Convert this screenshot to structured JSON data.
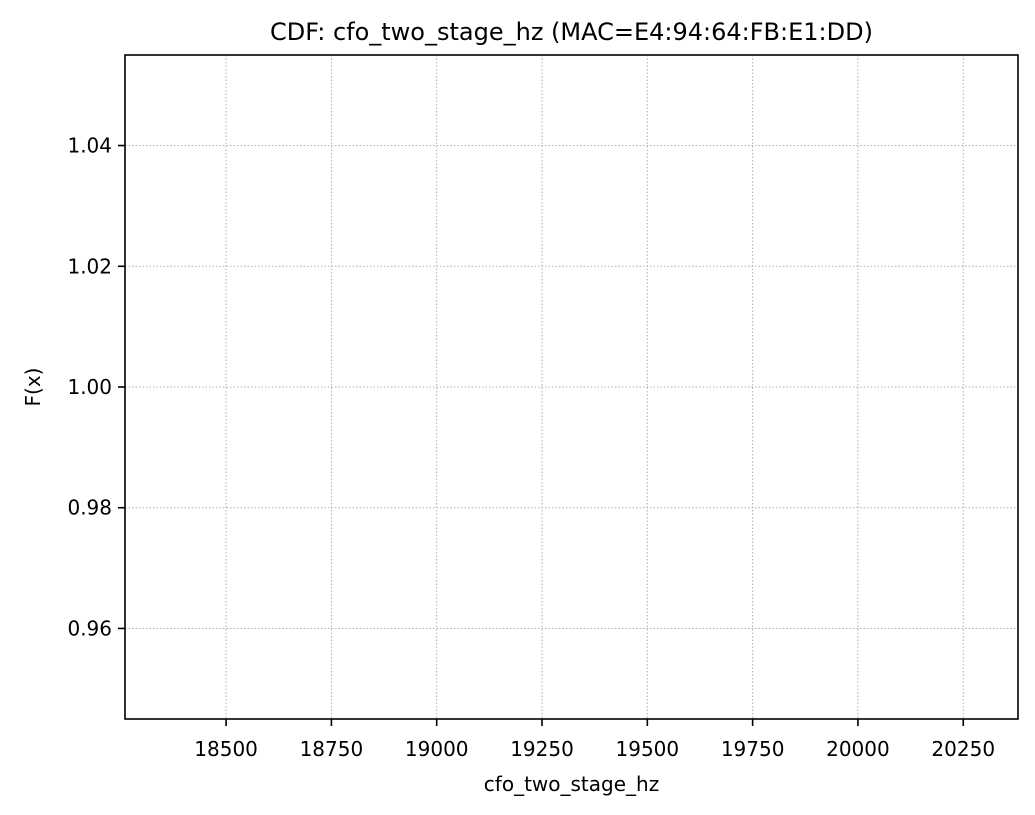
{
  "chart_data": {
    "type": "line",
    "title": "CDF: cfo_two_stage_hz (MAC=E4:94:64:FB:E1:DD)",
    "xlabel": "cfo_two_stage_hz",
    "ylabel": "F(x)",
    "xlim": [
      18260,
      20380
    ],
    "ylim": [
      0.945,
      1.055
    ],
    "xticks": [
      18500,
      18750,
      19000,
      19250,
      19500,
      19750,
      20000,
      20250
    ],
    "xtick_labels": [
      "18500",
      "18750",
      "19000",
      "19250",
      "19500",
      "19750",
      "20000",
      "20250"
    ],
    "yticks": [
      0.96,
      0.98,
      1.0,
      1.02,
      1.04
    ],
    "ytick_labels": [
      "0.96",
      "0.98",
      "1.00",
      "1.02",
      "1.04"
    ],
    "grid": true,
    "series": [],
    "colors": {
      "grid": "#b0b0b0",
      "axes": "#000000",
      "background": "#ffffff"
    }
  }
}
